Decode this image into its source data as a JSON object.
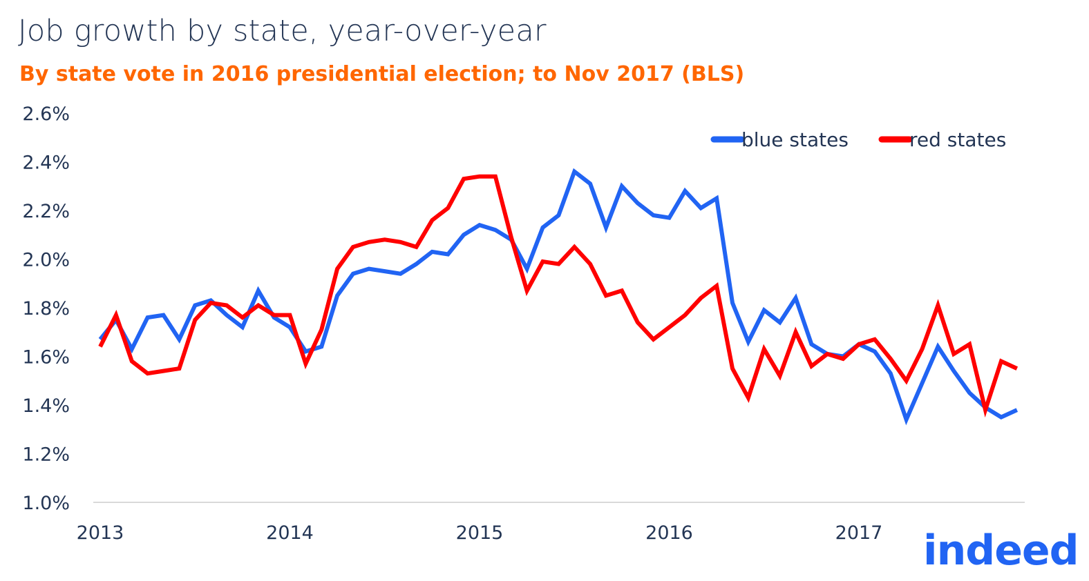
{
  "title": "Job growth by state, year-over-year",
  "subtitle": "By state vote in 2016 presidential election; to Nov 2017 (BLS)",
  "logo_text": "indeed",
  "colors": {
    "blue": "#2164f3",
    "red": "#ff0000",
    "text": "#233554",
    "subtitle": "#ff6600"
  },
  "chart_data": {
    "type": "line",
    "title": "Job growth by state, year-over-year",
    "subtitle": "By state vote in 2016 presidential election; to Nov 2017 (BLS)",
    "xlabel": "",
    "ylabel": "",
    "ylim": [
      1.0,
      2.6
    ],
    "yticks": [
      "1.0%",
      "1.2%",
      "1.4%",
      "1.6%",
      "1.8%",
      "2.0%",
      "2.2%",
      "2.4%",
      "2.6%"
    ],
    "xticks": [
      "2013",
      "2014",
      "2015",
      "2016",
      "2017"
    ],
    "legend_position": "top-right",
    "grid": false,
    "x": [
      "2013-01",
      "2013-02",
      "2013-03",
      "2013-04",
      "2013-05",
      "2013-06",
      "2013-07",
      "2013-08",
      "2013-09",
      "2013-10",
      "2013-11",
      "2013-12",
      "2014-01",
      "2014-02",
      "2014-03",
      "2014-04",
      "2014-05",
      "2014-06",
      "2014-07",
      "2014-08",
      "2014-09",
      "2014-10",
      "2014-11",
      "2014-12",
      "2015-01",
      "2015-02",
      "2015-03",
      "2015-04",
      "2015-05",
      "2015-06",
      "2015-07",
      "2015-08",
      "2015-09",
      "2015-10",
      "2015-11",
      "2015-12",
      "2016-01",
      "2016-02",
      "2016-03",
      "2016-04",
      "2016-05",
      "2016-06",
      "2016-07",
      "2016-08",
      "2016-09",
      "2016-10",
      "2016-11",
      "2016-12",
      "2017-01",
      "2017-02",
      "2017-03",
      "2017-04",
      "2017-05",
      "2017-06",
      "2017-07",
      "2017-08",
      "2017-09",
      "2017-10",
      "2017-11"
    ],
    "series": [
      {
        "name": "blue states",
        "color": "#2164f3",
        "values": [
          1.67,
          1.75,
          1.63,
          1.76,
          1.77,
          1.67,
          1.81,
          1.83,
          1.77,
          1.72,
          1.87,
          1.76,
          1.72,
          1.62,
          1.64,
          1.85,
          1.94,
          1.96,
          1.95,
          1.94,
          1.98,
          2.03,
          2.02,
          2.1,
          2.14,
          2.12,
          2.08,
          1.96,
          2.13,
          2.18,
          2.36,
          2.31,
          2.13,
          2.3,
          2.23,
          2.18,
          2.17,
          2.28,
          2.21,
          2.25,
          1.82,
          1.66,
          1.79,
          1.74,
          1.84,
          1.65,
          1.61,
          1.6,
          1.65,
          1.62,
          1.53,
          1.34,
          1.49,
          1.64,
          1.54,
          1.45,
          1.39,
          1.35,
          1.38
        ]
      },
      {
        "name": "red states",
        "color": "#ff0000",
        "values": [
          1.64,
          1.77,
          1.58,
          1.53,
          1.54,
          1.55,
          1.75,
          1.82,
          1.81,
          1.76,
          1.81,
          1.77,
          1.77,
          1.57,
          1.71,
          1.96,
          2.05,
          2.07,
          2.08,
          2.07,
          2.05,
          2.16,
          2.21,
          2.33,
          2.34,
          2.34,
          2.09,
          1.87,
          1.99,
          1.98,
          2.05,
          1.98,
          1.85,
          1.87,
          1.74,
          1.67,
          1.72,
          1.77,
          1.84,
          1.89,
          1.55,
          1.43,
          1.63,
          1.52,
          1.7,
          1.56,
          1.61,
          1.59,
          1.65,
          1.67,
          1.59,
          1.5,
          1.63,
          1.81,
          1.61,
          1.65,
          1.38,
          1.58,
          1.55
        ]
      }
    ]
  }
}
